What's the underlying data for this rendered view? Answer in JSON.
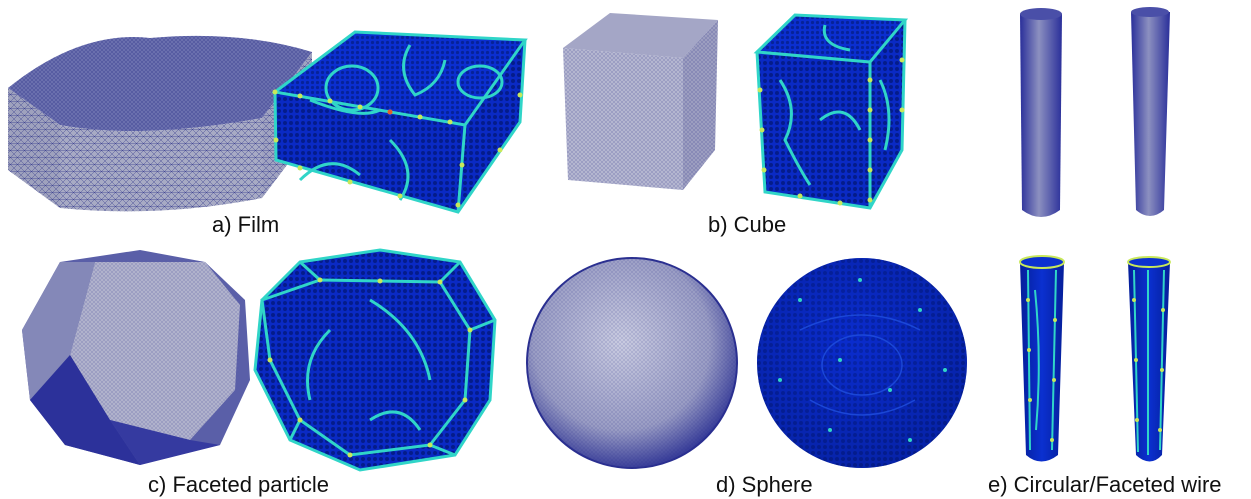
{
  "captions": {
    "a": "a) Film",
    "b": "b) Cube",
    "c": "c) Faceted particle",
    "d": "d) Sphere",
    "e": "e) Circular/Faceted wire"
  },
  "colors": {
    "mesh_top": "#8a8fb8",
    "mesh_side": "#a5a8c2",
    "mesh_line": "#1a1f7a",
    "atom_blue": "#0a2bcc",
    "atom_dark": "#001a8c",
    "defect_cyan": "#30d5c8",
    "defect_yellow": "#c8e85a",
    "defect_orange": "#e0602a"
  },
  "icons": {
    "film_mesh": "film-mesh-image",
    "film_atoms": "film-atoms-image",
    "cube_mesh": "cube-mesh-image",
    "cube_atoms": "cube-atoms-image",
    "faceted_mesh": "faceted-particle-mesh-image",
    "faceted_atoms": "faceted-particle-atoms-image",
    "sphere_mesh": "sphere-mesh-image",
    "sphere_atoms": "sphere-atoms-image",
    "wire_circ_mesh": "circular-wire-mesh-image",
    "wire_facet_mesh": "faceted-wire-mesh-image",
    "wire_circ_atoms": "circular-wire-atoms-image",
    "wire_facet_atoms": "faceted-wire-atoms-image"
  }
}
